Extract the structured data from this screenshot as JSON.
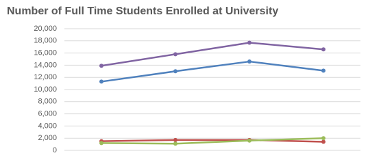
{
  "chart_data": {
    "type": "line",
    "title": "Number of Full Time Students Enrolled at University",
    "categories": [
      null,
      null,
      null,
      null
    ],
    "series": [
      {
        "color": "#8064a2",
        "values": [
          13900,
          15800,
          17700,
          16600
        ]
      },
      {
        "color": "#4f81bd",
        "values": [
          11300,
          13000,
          14600,
          13100
        ]
      },
      {
        "color": "#c0504d",
        "values": [
          1500,
          1700,
          1700,
          1400
        ]
      },
      {
        "color": "#9bbb59",
        "values": [
          1200,
          1100,
          1600,
          2000
        ]
      }
    ],
    "ylim": [
      0,
      20000
    ],
    "yticks": [
      0,
      {
        "value": 2000,
        "label": "2,000"
      },
      {
        "value": 4000,
        "label": "4,000"
      },
      {
        "value": 6000,
        "label": "6,000"
      },
      {
        "value": 8000,
        "label": "8,000"
      },
      {
        "value": 10000,
        "label": "10,000"
      },
      {
        "value": 12000,
        "label": "12,000"
      },
      {
        "value": 14000,
        "label": "14,000"
      },
      {
        "value": 16000,
        "label": "16,000"
      },
      {
        "value": 18000,
        "label": "18,000"
      },
      {
        "value": 20000,
        "label": "20,000"
      }
    ],
    "grid": true
  }
}
